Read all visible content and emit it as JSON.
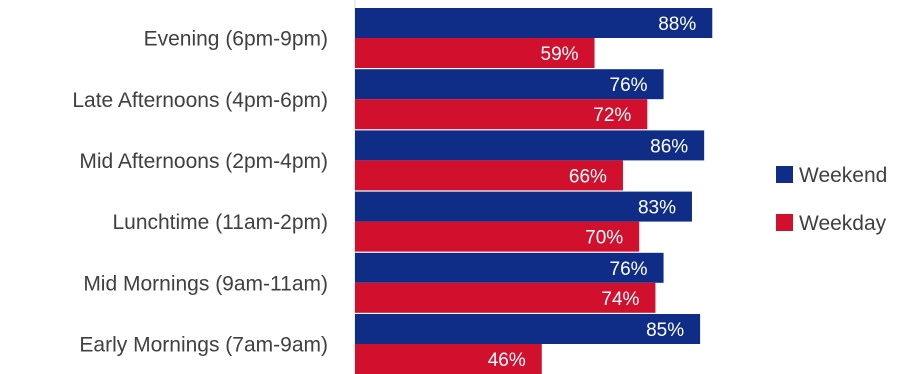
{
  "chart_data": {
    "type": "bar",
    "orientation": "horizontal",
    "categories": [
      "Evening (6pm-9pm)",
      "Late Afternoons (4pm-6pm)",
      "Mid Afternoons (2pm-4pm)",
      "Lunchtime (11am-2pm)",
      "Mid Mornings (9am-11am)",
      "Early Mornings (7am-9am)"
    ],
    "series": [
      {
        "name": "Weekend",
        "color": "#0f2d87",
        "values": [
          88,
          76,
          86,
          83,
          76,
          85
        ],
        "labels": [
          "88%",
          "76%",
          "86%",
          "83%",
          "76%",
          "85%"
        ]
      },
      {
        "name": "Weekday",
        "color": "#d0102c",
        "values": [
          59,
          72,
          66,
          70,
          74,
          46
        ],
        "labels": [
          "59%",
          "72%",
          "66%",
          "70%",
          "74%",
          "46%"
        ]
      }
    ],
    "value_unit": "%",
    "xlim": [
      0,
      100
    ],
    "grid": false,
    "legend_position": "right",
    "title": "",
    "xlabel": "",
    "ylabel": ""
  }
}
